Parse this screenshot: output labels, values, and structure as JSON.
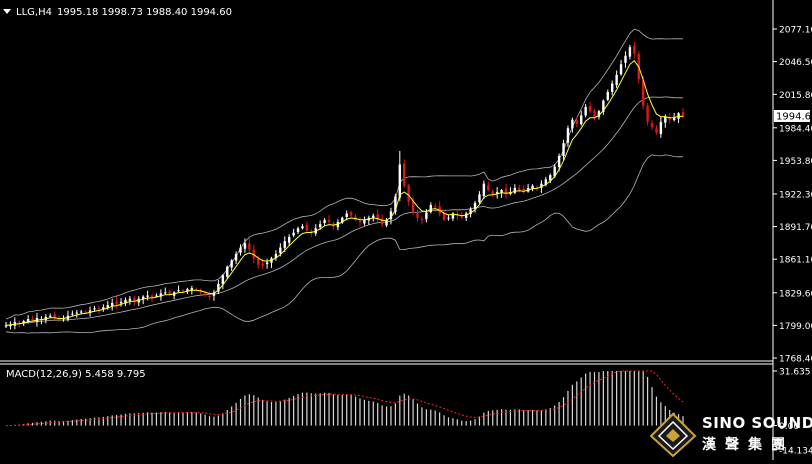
{
  "header": {
    "symbol_label": "LLG,H4",
    "ohlc_label": "1995.18 1998.73 1988.40 1994.60"
  },
  "macd_label": "MACD(12,26,9) 5.458 9.795",
  "price_tag": "1994.60",
  "logo": {
    "english": "SINO SOUND",
    "chinese": "漢聲集團"
  },
  "colors": {
    "background": "#000000",
    "bull_candle": "#ffffff",
    "bear_candle": "#e01515",
    "bollinger": "#b4b4b4",
    "moving_average": "#ffff33",
    "macd_histogram": "#d8d8d8",
    "macd_signal": "#ff2020"
  },
  "chart_data": [
    {
      "type": "candlestick",
      "title": "LLG,H4",
      "y_ticks": [
        "2077.10",
        "2046.50",
        "2015.80",
        "1984.40",
        "1953.80",
        "1922.30",
        "1891.70",
        "1861.10",
        "1829.60",
        "1799.00",
        "1768.40"
      ],
      "ylim": [
        1768.4,
        2081
      ],
      "last_price": 1994.6,
      "grid": false,
      "close_series": [
        1799,
        1800,
        1802,
        1801,
        1803,
        1805,
        1804,
        1806,
        1805,
        1807,
        1808,
        1806,
        1804,
        1806,
        1808,
        1810,
        1811,
        1812,
        1811,
        1813,
        1815,
        1814,
        1816,
        1818,
        1820,
        1819,
        1821,
        1823,
        1824,
        1822,
        1824,
        1826,
        1827,
        1825,
        1827,
        1829,
        1830,
        1828,
        1830,
        1832,
        1831,
        1833,
        1834,
        1832,
        1830,
        1828,
        1826,
        1830,
        1838,
        1846,
        1854,
        1860,
        1866,
        1872,
        1876,
        1870,
        1862,
        1856,
        1855,
        1858,
        1862,
        1866,
        1872,
        1878,
        1882,
        1886,
        1890,
        1892,
        1888,
        1886,
        1890,
        1894,
        1898,
        1896,
        1892,
        1896,
        1900,
        1904,
        1902,
        1898,
        1896,
        1898,
        1900,
        1902,
        1898,
        1894,
        1898,
        1906,
        1920,
        1950,
        1930,
        1915,
        1905,
        1900,
        1898,
        1905,
        1912,
        1910,
        1904,
        1898,
        1900,
        1904,
        1902,
        1900,
        1904,
        1908,
        1914,
        1922,
        1932,
        1926,
        1922,
        1924,
        1926,
        1922,
        1924,
        1928,
        1926,
        1924,
        1928,
        1930,
        1928,
        1932,
        1936,
        1940,
        1948,
        1958,
        1970,
        1984,
        1992,
        1988,
        1996,
        2004,
        2000,
        1994,
        2000,
        2010,
        2018,
        2026,
        2034,
        2044,
        2052,
        2060,
        2054,
        2030,
        2005,
        1990,
        1985,
        1980,
        1990,
        1995,
        1992,
        1994,
        1998,
        1994.6
      ]
    },
    {
      "type": "bar",
      "title": "MACD(12,26,9)",
      "y_ticks": [
        "31.635",
        "0.00",
        "-14.134"
      ],
      "ylim": [
        -14.134,
        31.635
      ],
      "macd": 5.458,
      "signal": 9.795
    }
  ]
}
